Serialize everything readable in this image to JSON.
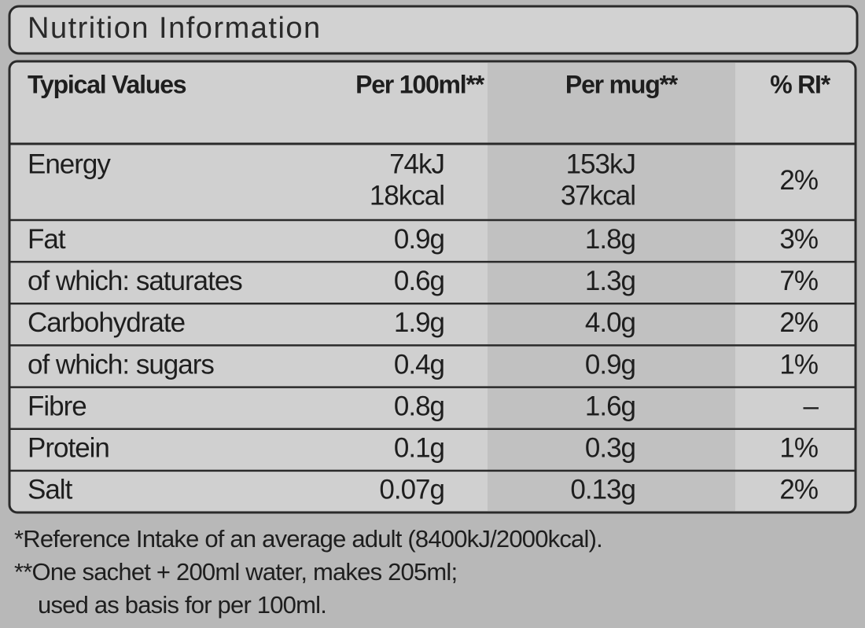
{
  "title": "Nutrition Information",
  "table": {
    "header": [
      "Typical Values",
      "Per 100ml**",
      "Per mug**",
      "% RI*"
    ],
    "rows": [
      [
        "Energy",
        [
          "74kJ",
          "18kcal"
        ],
        [
          "153kJ",
          "37kcal"
        ],
        "2%"
      ],
      [
        "Fat",
        "0.9g",
        "1.8g",
        "3%"
      ],
      [
        "of which: saturates",
        "0.6g",
        "1.3g",
        "7%"
      ],
      [
        "Carbohydrate",
        "1.9g",
        "4.0g",
        "2%"
      ],
      [
        "of which: sugars",
        "0.4g",
        "0.9g",
        "1%"
      ],
      [
        "Fibre",
        "0.8g",
        "1.6g",
        "–"
      ],
      [
        "Protein",
        "0.1g",
        "0.3g",
        "1%"
      ],
      [
        "Salt",
        "0.07g",
        "0.13g",
        "2%"
      ]
    ]
  },
  "footnotes": [
    "*Reference Intake of an average adult (8400kJ/2000kcal).",
    "**One sachet + 200ml water, makes 205ml;",
    "used as basis for per 100ml."
  ]
}
